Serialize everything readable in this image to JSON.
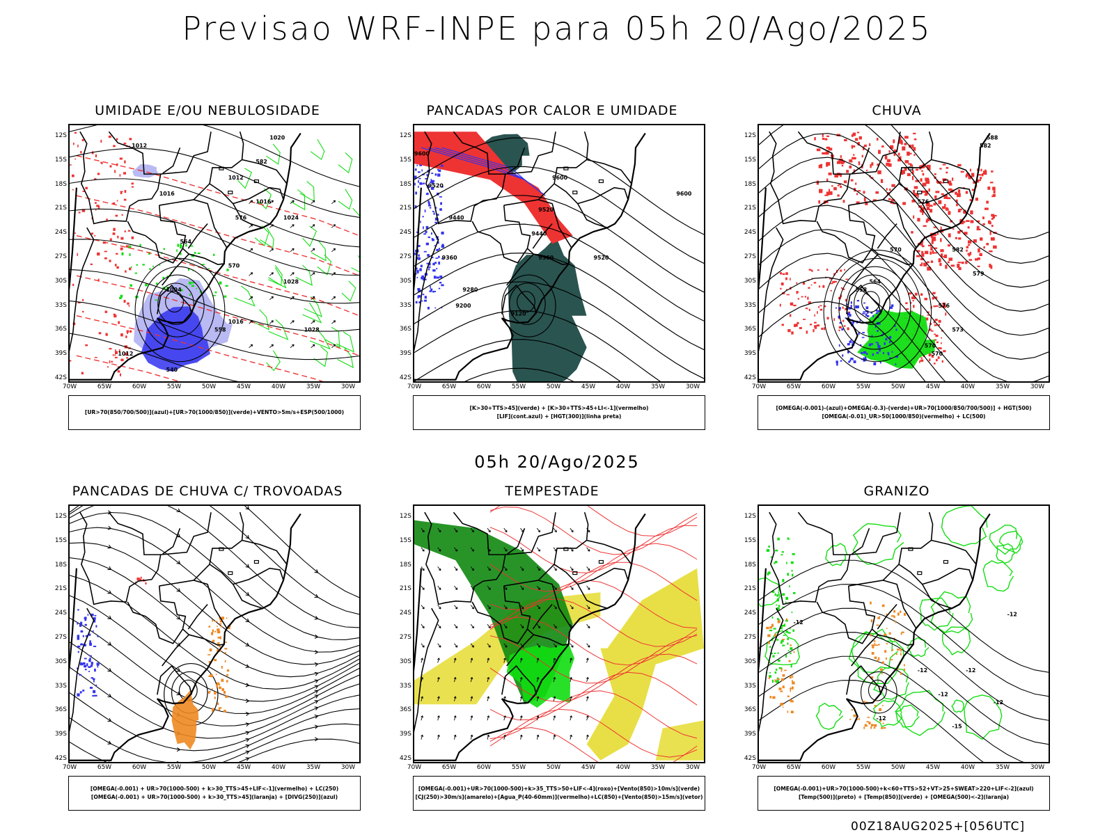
{
  "main_title": "Previsao WRF-INPE  para 05h 20/Ago/2025",
  "mid_title": "05h 20/Ago/2025",
  "footer": "00Z18AUG2025+[056UTC]",
  "lat_labels": [
    "12S",
    "15S",
    "18S",
    "21S",
    "24S",
    "27S",
    "30S",
    "33S",
    "36S",
    "39S",
    "42S"
  ],
  "lon_labels": [
    "70W",
    "65W",
    "60W",
    "55W",
    "50W",
    "45W",
    "40W",
    "35W",
    "30W"
  ],
  "colors": {
    "blue": "#3333ee",
    "light_blue": "#a8a8f0",
    "green": "#11dd11",
    "red": "#ee3333",
    "dark_teal": "#1f4b47",
    "orange": "#ee8822",
    "yellow": "#e6dc32",
    "dark_green": "#118811"
  },
  "panels": [
    {
      "title": "UMIDADE E/OU NEBULOSIDADE",
      "legend": [
        "[UR>70(850/700/500)](azul)+[UR>70(1000/850)](verde)+VENTO>5m/s+ESP(500/1000)"
      ],
      "contour_labels": [
        "1012",
        "1020",
        "1016",
        "1012",
        "1016",
        "1024",
        "1028",
        "1028",
        "1016",
        "1004",
        "1012",
        "540",
        "558",
        "564",
        "570",
        "576",
        "582"
      ]
    },
    {
      "title": "PANCADAS POR CALOR E UMIDADE",
      "legend": [
        "[K>30+TTS>45](verde) + [K>30+TTS>45+LI<-1](vermelho)",
        "[LIF](cont.azul) + [HGT(300)](linha preta)"
      ],
      "contour_labels": [
        "9600",
        "9520",
        "9440",
        "9360",
        "9280",
        "9200",
        "9120",
        "9600",
        "9520",
        "9440",
        "9360",
        "9600",
        "9520"
      ]
    },
    {
      "title": "CHUVA",
      "legend": [
        "[OMEGA(-0.001)-(azul)+OMEGA(-0.3)-(verde)+UR>70(1000/850/700/500)] + HGT(500)",
        "[OMEGA(-0.01)_UR>50(1000/850)(vermelho) + LC(500)"
      ],
      "contour_labels": [
        "588",
        "582",
        "576",
        "570",
        "564",
        "558",
        "570",
        "576",
        "579",
        "582",
        "573",
        "570"
      ]
    },
    {
      "title": "PANCADAS DE CHUVA C/ TROVOADAS",
      "legend": [
        "[OMEGA(-0.001) + UR>70(1000-500) + k>30_TTS>45+LIF<-1](vermelho) + LC(250)",
        "[OMEGA(-0.001) + UR>70(1000-500) + k>30_TTS>45](laranja) + [DIVG(250)](azul)"
      ],
      "contour_labels": []
    },
    {
      "title": "TEMPESTADE",
      "legend": [
        "[OMEGA(-0.001)+UR>70(1000-500)+k>35_TTS>50+LIF<-4](roxo)+[Vento(850)>10m/s](verde)",
        "[CJ(250)>30m/s](amarelo)+[Agua_P(40-60mm)](vermelho)+LC(850)+[Vento(850)>15m/s](vetor)"
      ],
      "contour_labels": []
    },
    {
      "title": "GRANIZO",
      "legend": [
        "[OMEGA(-0.001)+UR>70(1000-500)+k<60+TTS>52+VT>25+SWEAT>220+LIF<-2](azul)",
        "[Temp(500)](preto) + [Temp(850)](verde) + [OMEGA(500)<-2](laranja)"
      ],
      "contour_labels": [
        "-12",
        "-12",
        "-12",
        "-12",
        "-12",
        "-15",
        "-12",
        "-12"
      ]
    }
  ]
}
